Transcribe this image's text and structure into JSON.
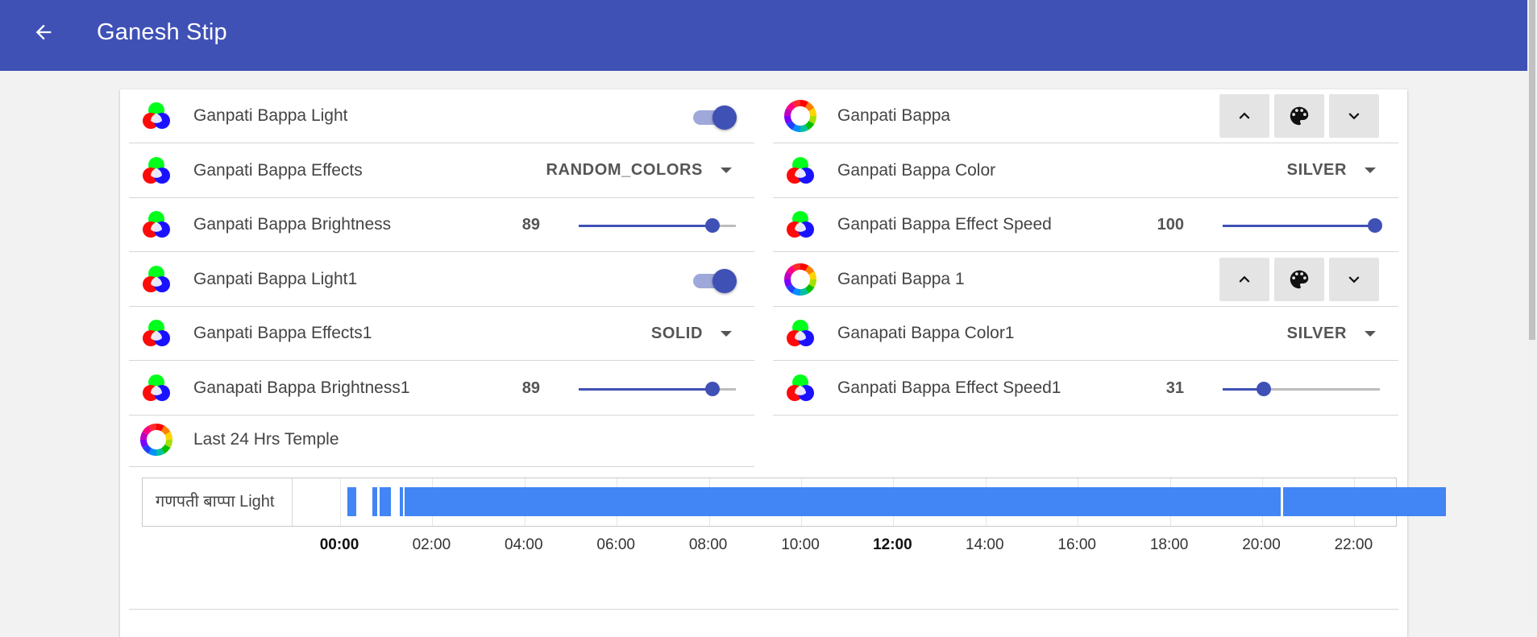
{
  "appbar": {
    "title": "Ganesh Stip",
    "back_icon": "arrow-left-icon",
    "color": "#3f51b5"
  },
  "left_column": [
    {
      "label": "Ganpati Bappa Light",
      "icon": "rgb-circles-icon",
      "control": "toggle",
      "on": true
    },
    {
      "label": "Ganpati Bappa Effects",
      "icon": "rgb-circles-icon",
      "control": "dropdown",
      "value": "RANDOM_COLORS"
    },
    {
      "label": "Ganpati Bappa Brightness",
      "icon": "rgb-circles-icon",
      "control": "slider",
      "value": "89",
      "fraction": 0.85
    },
    {
      "label": "Ganpati Bappa Light1",
      "icon": "rgb-circles-icon",
      "control": "toggle",
      "on": true
    },
    {
      "label": "Ganpati Bappa Effects1",
      "icon": "rgb-circles-icon",
      "control": "dropdown",
      "value": "SOLID"
    },
    {
      "label": "Ganapati Bappa Brightness1",
      "icon": "rgb-circles-icon",
      "control": "slider",
      "value": "89",
      "fraction": 0.85
    }
  ],
  "right_column": [
    {
      "label": "Ganpati Bappa",
      "icon": "color-wheel-icon",
      "control": "buttons"
    },
    {
      "label": "Ganpati Bappa Color",
      "icon": "rgb-circles-icon",
      "control": "dropdown",
      "value": "SILVER"
    },
    {
      "label": "Ganpati Bappa Effect Speed",
      "icon": "rgb-circles-icon",
      "control": "slider",
      "value": "100",
      "fraction": 0.97
    },
    {
      "label": "Ganpati Bappa 1",
      "icon": "color-wheel-icon",
      "control": "buttons"
    },
    {
      "label": "Ganapati Bappa Color1",
      "icon": "rgb-circles-icon",
      "control": "dropdown",
      "value": "SILVER"
    },
    {
      "label": "Ganpati Bappa Effect Speed1",
      "icon": "rgb-circles-icon",
      "control": "slider",
      "value": "31",
      "fraction": 0.26
    }
  ],
  "history": {
    "title": "Last 24 Hrs Temple",
    "icon": "color-wheel-icon",
    "timeline_label": "गणपती बाप्पा Light",
    "bar_color": "#4285f4",
    "on_periods": [
      [
        "00:09",
        "00:21"
      ],
      [
        "00:42",
        "00:48"
      ],
      [
        "00:51",
        "01:06"
      ],
      [
        "01:18",
        "01:21"
      ],
      [
        "01:24",
        "20:24"
      ],
      [
        "20:27",
        "23:59"
      ]
    ],
    "axis_ticks": [
      "00:00",
      "02:00",
      "04:00",
      "06:00",
      "08:00",
      "10:00",
      "12:00",
      "14:00",
      "16:00",
      "18:00",
      "20:00",
      "22:00"
    ],
    "bold_ticks": [
      "00:00",
      "12:00"
    ]
  }
}
